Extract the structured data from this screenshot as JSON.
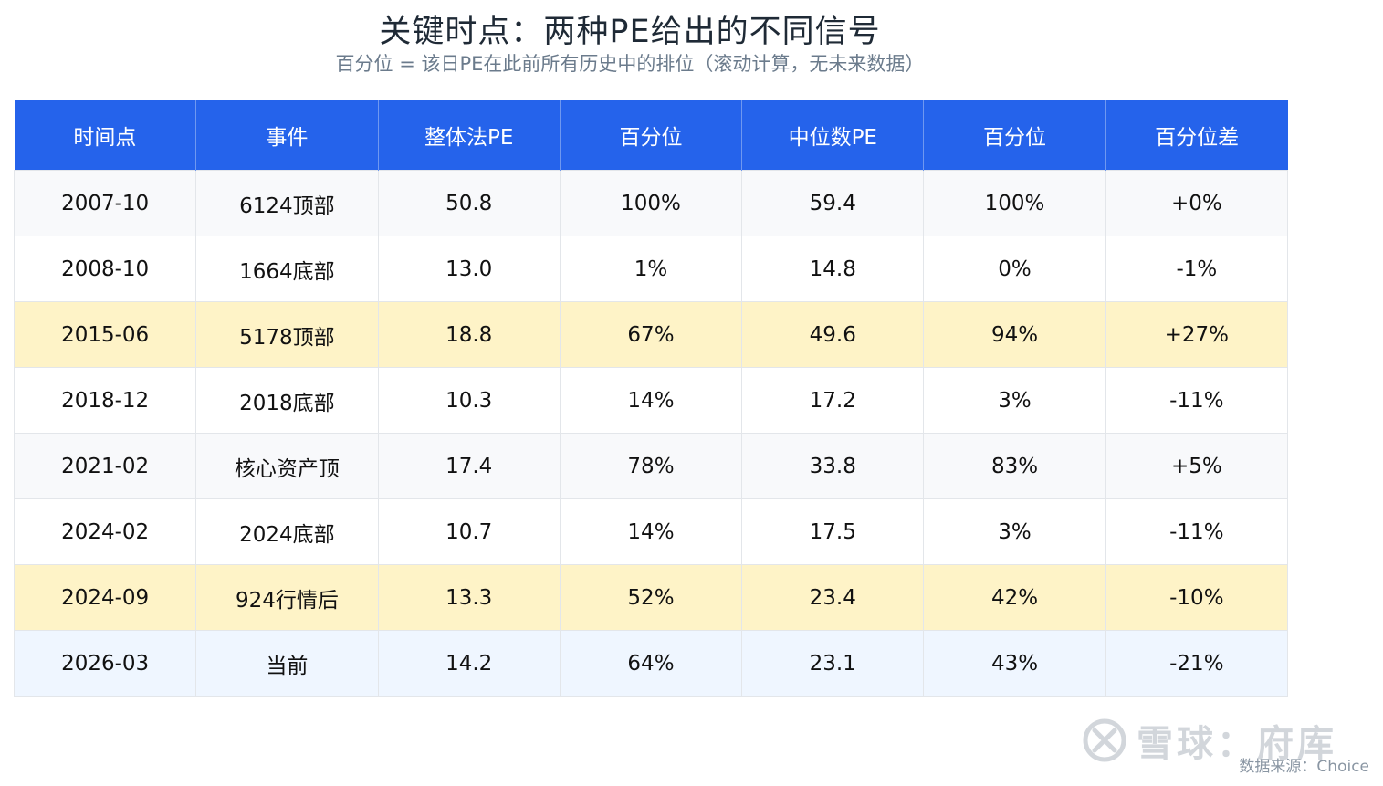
{
  "chart_data": {
    "type": "table",
    "title": "关键时点：两种PE给出的不同信号",
    "subtitle": "百分位 = 该日PE在此前所有历史中的排位（滚动计算，无未来数据）",
    "columns": [
      "时间点",
      "事件",
      "整体法PE",
      "百分位",
      "中位数PE",
      "百分位",
      "百分位差"
    ],
    "rows": [
      {
        "date": "2007-10",
        "event": "6124顶部",
        "pe_overall": "50.8",
        "pct_overall": "100%",
        "pe_median": "59.4",
        "pct_median": "100%",
        "diff": "+0%",
        "style": "alt"
      },
      {
        "date": "2008-10",
        "event": "1664底部",
        "pe_overall": "13.0",
        "pct_overall": "1%",
        "pe_median": "14.8",
        "pct_median": "0%",
        "diff": "-1%",
        "style": "plain"
      },
      {
        "date": "2015-06",
        "event": "5178顶部",
        "pe_overall": "18.8",
        "pct_overall": "67%",
        "pe_median": "49.6",
        "pct_median": "94%",
        "diff": "+27%",
        "style": "hl"
      },
      {
        "date": "2018-12",
        "event": "2018底部",
        "pe_overall": "10.3",
        "pct_overall": "14%",
        "pe_median": "17.2",
        "pct_median": "3%",
        "diff": "-11%",
        "style": "plain"
      },
      {
        "date": "2021-02",
        "event": "核心资产顶",
        "pe_overall": "17.4",
        "pct_overall": "78%",
        "pe_median": "33.8",
        "pct_median": "83%",
        "diff": "+5%",
        "style": "alt"
      },
      {
        "date": "2024-02",
        "event": "2024底部",
        "pe_overall": "10.7",
        "pct_overall": "14%",
        "pe_median": "17.5",
        "pct_median": "3%",
        "diff": "-11%",
        "style": "plain"
      },
      {
        "date": "2024-09",
        "event": "924行情后",
        "pe_overall": "13.3",
        "pct_overall": "52%",
        "pe_median": "23.4",
        "pct_median": "42%",
        "diff": "-10%",
        "style": "hl"
      },
      {
        "date": "2026-03",
        "event": "当前",
        "pe_overall": "14.2",
        "pct_overall": "64%",
        "pe_median": "23.1",
        "pct_median": "43%",
        "diff": "-21%",
        "style": "cur"
      }
    ],
    "colors": {
      "header": "#2563eb",
      "highlight": "#fef3c7",
      "current": "#eff6ff",
      "alt": "#f8f9fb"
    }
  },
  "watermark": {
    "text": "雪球：府库",
    "logo_icon": "snowball-logo-icon"
  },
  "source": "数据来源：Choice"
}
